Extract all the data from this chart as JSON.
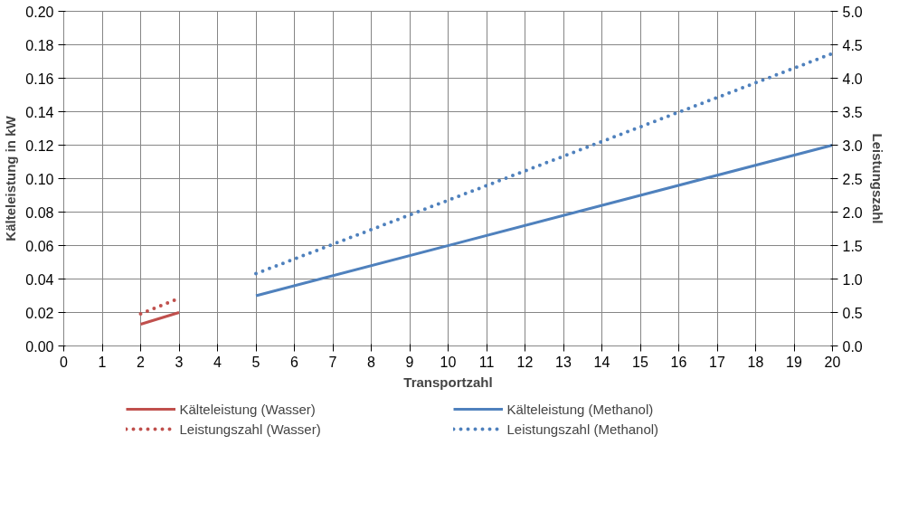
{
  "chart_data": {
    "type": "line",
    "xlabel": "Transportzahl",
    "ylabel": "Kälteleistung in kW",
    "y2label": "Leistungszahl",
    "xlim": [
      0,
      20
    ],
    "xticks": [
      0,
      1,
      2,
      3,
      4,
      5,
      6,
      7,
      8,
      9,
      10,
      11,
      12,
      13,
      14,
      15,
      16,
      17,
      18,
      19,
      20
    ],
    "ylim": [
      0,
      0.2
    ],
    "yticks": [
      {
        "value": 0,
        "label": "0.00"
      },
      {
        "value": 0.02,
        "label": "0.02"
      },
      {
        "value": 0.04,
        "label": "0.04"
      },
      {
        "value": 0.06,
        "label": "0.06"
      },
      {
        "value": 0.08,
        "label": "0.08"
      },
      {
        "value": 0.1,
        "label": "0.10"
      },
      {
        "value": 0.12,
        "label": "0.12"
      },
      {
        "value": 0.14,
        "label": "0.14"
      },
      {
        "value": 0.16,
        "label": "0.16"
      },
      {
        "value": 0.18,
        "label": "0.18"
      },
      {
        "value": 0.2,
        "label": "0.20"
      }
    ],
    "y2lim": [
      0,
      5
    ],
    "y2ticks": [
      {
        "value": 0,
        "label": "0.0"
      },
      {
        "value": 0.5,
        "label": "0.5"
      },
      {
        "value": 1,
        "label": "1.0"
      },
      {
        "value": 1.5,
        "label": "1.5"
      },
      {
        "value": 2,
        "label": "2.0"
      },
      {
        "value": 2.5,
        "label": "2.5"
      },
      {
        "value": 3,
        "label": "3.0"
      },
      {
        "value": 3.5,
        "label": "3.5"
      },
      {
        "value": 4,
        "label": "4.0"
      },
      {
        "value": 4.5,
        "label": "4.5"
      },
      {
        "value": 5,
        "label": "5.0"
      }
    ],
    "grid": true,
    "legend": "bottom",
    "series": [
      {
        "name": "Kälteleistung (Wasser)",
        "color": "#c0504d",
        "x": [
          2,
          3
        ],
        "values": [
          0.013,
          0.02
        ],
        "line_style": "solid"
      },
      {
        "name": "Kälteleistung (Methanol)",
        "color": "#4f81bd",
        "x": [
          5,
          20
        ],
        "values": [
          0.03,
          0.12
        ],
        "line_style": "solid"
      },
      {
        "name": "Leistungszahl (Wasser)",
        "color": "#c0504d",
        "x": [
          2,
          3
        ],
        "values": [
          0.48,
          0.71
        ],
        "line_style": "dotted",
        "axis": "y2"
      },
      {
        "name": "Leistungszahl (Methanol)",
        "color": "#4f81bd",
        "x": [
          5,
          20
        ],
        "values": [
          1.08,
          4.37
        ],
        "line_style": "dotted",
        "axis": "y2"
      }
    ]
  }
}
